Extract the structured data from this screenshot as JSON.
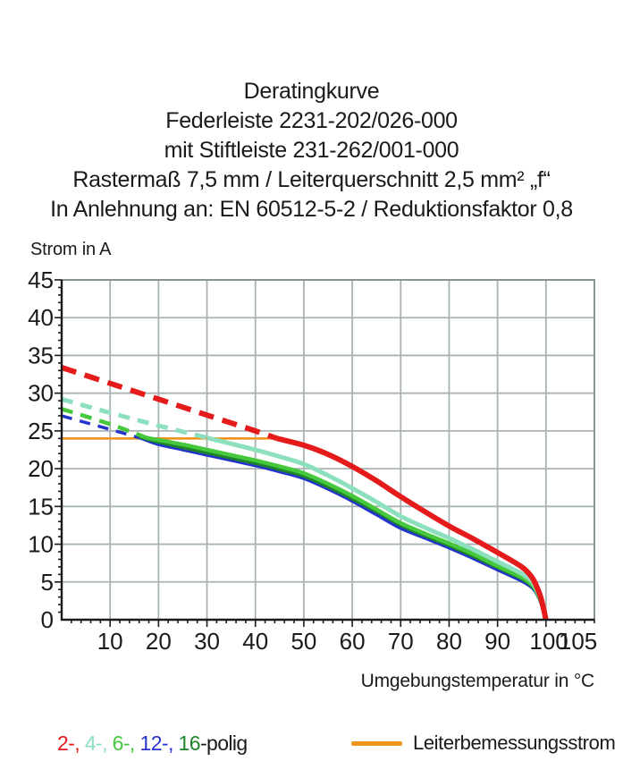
{
  "title": {
    "lines": [
      "Deratingkurve",
      "Federleiste 2231-202/026-000",
      "mit Stiftleiste 231-262/001-000",
      "Rastermaß 7,5 mm / Leiterquerschnitt 2,5 mm² „f“",
      "In Anlehnung an: EN 60512-5-2 / Reduktionsfaktor 0,8"
    ]
  },
  "chart_data": {
    "type": "line",
    "title": "Deratingkurve",
    "xlabel": "Umgebungstemperatur in °C",
    "ylabel": "Strom in A",
    "xlim": [
      0,
      110
    ],
    "ylim": [
      0,
      45
    ],
    "grid": true,
    "colors": {
      "grid": "#a9b3b3",
      "frame": "#8a9494",
      "axis": "#1a1a1a",
      "text": "#1a1a1a",
      "rated": "#f0941e"
    },
    "x_ticks": [
      {
        "value": 10,
        "label": "10"
      },
      {
        "value": 20,
        "label": "20"
      },
      {
        "value": 30,
        "label": "30"
      },
      {
        "value": 40,
        "label": "40"
      },
      {
        "value": 50,
        "label": "50"
      },
      {
        "value": 60,
        "label": "60"
      },
      {
        "value": 70,
        "label": "70"
      },
      {
        "value": 80,
        "label": "80"
      },
      {
        "value": 90,
        "label": "90"
      },
      {
        "value": 100,
        "label": "100",
        "label_x": 100.6
      },
      {
        "value": 105,
        "label": "105",
        "label_x": 106.6
      }
    ],
    "y_ticks": [
      0,
      5,
      10,
      15,
      20,
      25,
      30,
      35,
      40,
      45
    ],
    "x_minor_step": 2,
    "y_minor_step": 1,
    "rated_line": {
      "label": "Leiterbemessungsstrom",
      "y": 24,
      "x_start": 0,
      "x_end": 44.5,
      "color": "#f0941e"
    },
    "series": [
      {
        "name": "2-polig",
        "color": "#e51a1a",
        "width": 6,
        "dash_until_t": 44.5,
        "dash": [
          17,
          10
        ],
        "points": [
          [
            0,
            33.4
          ],
          [
            10,
            31.3
          ],
          [
            20,
            29.2
          ],
          [
            30,
            27.1
          ],
          [
            40,
            25.0
          ],
          [
            44.5,
            24.0
          ],
          [
            50,
            23.1
          ],
          [
            55,
            21.9
          ],
          [
            60,
            20.3
          ],
          [
            65,
            18.4
          ],
          [
            70,
            16.3
          ],
          [
            75,
            14.3
          ],
          [
            80,
            12.4
          ],
          [
            85,
            10.7
          ],
          [
            90,
            8.9
          ],
          [
            95,
            7.0
          ],
          [
            97,
            5.7
          ],
          [
            98,
            4.5
          ],
          [
            99,
            2.8
          ],
          [
            100,
            0
          ]
        ]
      },
      {
        "name": "4-polig",
        "color": "#8ce0bd",
        "width": 5,
        "dash_until_t": 30,
        "dash": [
          13,
          9
        ],
        "points": [
          [
            0,
            29.2
          ],
          [
            10,
            27.4
          ],
          [
            20,
            25.7
          ],
          [
            30,
            24.1
          ],
          [
            35,
            23.3
          ],
          [
            40,
            22.5
          ],
          [
            45,
            21.6
          ],
          [
            50,
            20.6
          ],
          [
            55,
            19.1
          ],
          [
            60,
            17.4
          ],
          [
            65,
            15.6
          ],
          [
            70,
            13.7
          ],
          [
            75,
            12.2
          ],
          [
            80,
            10.8
          ],
          [
            85,
            9.3
          ],
          [
            90,
            7.7
          ],
          [
            95,
            6.1
          ],
          [
            97,
            5.1
          ],
          [
            98,
            4.1
          ],
          [
            99,
            2.6
          ],
          [
            100,
            0
          ]
        ]
      },
      {
        "name": "6-polig",
        "color": "#46c83c",
        "width": 4.5,
        "dash_until_t": 17.5,
        "dash": [
          13,
          9
        ],
        "points": [
          [
            0,
            27.9
          ],
          [
            10,
            25.9
          ],
          [
            17.5,
            24.1
          ],
          [
            20,
            23.8
          ],
          [
            25,
            23.2
          ],
          [
            30,
            22.5
          ],
          [
            35,
            21.8
          ],
          [
            40,
            21.1
          ],
          [
            45,
            20.3
          ],
          [
            50,
            19.4
          ],
          [
            55,
            18.0
          ],
          [
            60,
            16.4
          ],
          [
            65,
            14.6
          ],
          [
            70,
            12.8
          ],
          [
            75,
            11.4
          ],
          [
            80,
            10.1
          ],
          [
            85,
            8.7
          ],
          [
            90,
            7.1
          ],
          [
            95,
            5.6
          ],
          [
            97,
            4.7
          ],
          [
            98,
            3.8
          ],
          [
            99,
            2.3
          ],
          [
            100,
            0
          ]
        ]
      },
      {
        "name": "12-polig",
        "color": "#2433cc",
        "width": 3.5,
        "dash_until_t": 16.5,
        "dash": [
          12,
          9
        ],
        "points": [
          [
            0,
            27.0
          ],
          [
            10,
            25.2
          ],
          [
            16.5,
            24.0
          ],
          [
            20,
            23.2
          ],
          [
            25,
            22.5
          ],
          [
            30,
            21.8
          ],
          [
            35,
            21.1
          ],
          [
            40,
            20.4
          ],
          [
            45,
            19.6
          ],
          [
            50,
            18.7
          ],
          [
            55,
            17.3
          ],
          [
            60,
            15.7
          ],
          [
            65,
            13.9
          ],
          [
            70,
            12.1
          ],
          [
            75,
            10.8
          ],
          [
            80,
            9.5
          ],
          [
            85,
            8.1
          ],
          [
            90,
            6.6
          ],
          [
            95,
            5.1
          ],
          [
            97,
            4.3
          ],
          [
            98,
            3.5
          ],
          [
            99,
            2.1
          ],
          [
            100,
            0
          ]
        ]
      },
      {
        "name": "16-polig",
        "color": "#1e8428",
        "width": 3.5,
        "dash_until_t": null,
        "dash": null,
        "points": [
          [
            16,
            24.2
          ],
          [
            20,
            23.5
          ],
          [
            25,
            22.8
          ],
          [
            30,
            22.1
          ],
          [
            35,
            21.4
          ],
          [
            40,
            20.7
          ],
          [
            45,
            19.9
          ],
          [
            50,
            19.0
          ],
          [
            55,
            17.6
          ],
          [
            60,
            16.0
          ],
          [
            65,
            14.3
          ],
          [
            70,
            12.5
          ],
          [
            75,
            11.1
          ],
          [
            80,
            9.8
          ],
          [
            85,
            8.4
          ],
          [
            90,
            6.9
          ],
          [
            95,
            5.4
          ],
          [
            97,
            4.5
          ],
          [
            98,
            3.7
          ],
          [
            99,
            2.2
          ],
          [
            100,
            0
          ]
        ]
      }
    ],
    "draw_order": [
      3,
      4,
      2,
      1,
      0
    ],
    "legend": {
      "poles_parts": [
        {
          "text": "2-,",
          "color": "#e51a1a"
        },
        {
          "text": " 4-,",
          "color": "#8ce0bd"
        },
        {
          "text": " 6-,",
          "color": "#46c83c"
        },
        {
          "text": " 12-,",
          "color": "#2433cc"
        },
        {
          "text": " 16",
          "color": "#1e8428"
        },
        {
          "text": "-polig",
          "color": "#1a1a1a"
        }
      ],
      "rated_label": "Leiterbemessungsstrom"
    }
  }
}
